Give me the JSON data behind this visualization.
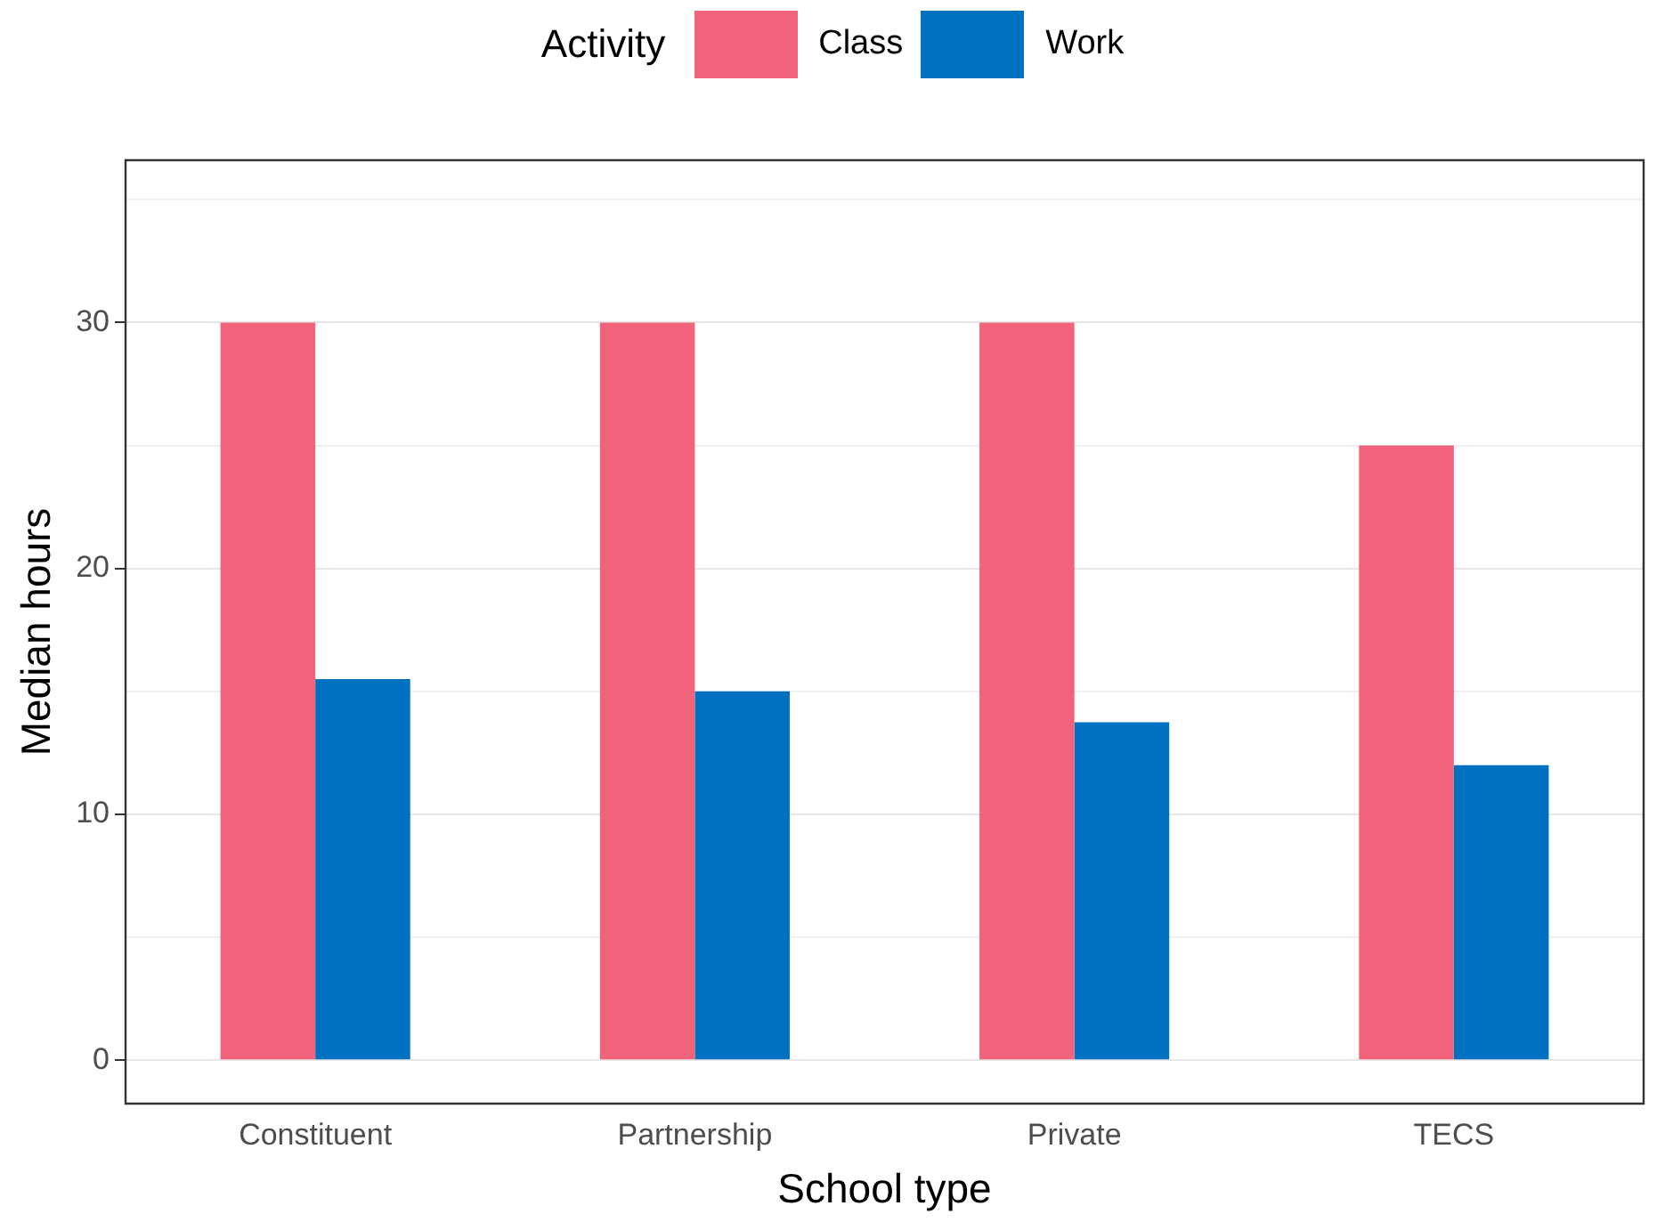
{
  "chart_data": {
    "type": "bar",
    "xlabel": "School type",
    "ylabel": "Median hours",
    "legend_title": "Activity",
    "legend": "top",
    "grid": "y",
    "categories": [
      "Constituent",
      "Partnership",
      "Private",
      "TECS"
    ],
    "series": [
      {
        "name": "Class",
        "color": "#f0637a",
        "values": [
          30,
          30,
          30,
          25
        ]
      },
      {
        "name": "Work",
        "color": "#0070c0",
        "values": [
          15.5,
          15,
          13.75,
          12
        ]
      }
    ],
    "ylim": [
      -1.76,
      36.6
    ],
    "yticks": [
      0,
      {
        "value": 5,
        "label": null
      },
      10,
      {
        "value": 15,
        "label": null
      },
      20,
      {
        "value": 25,
        "label": null
      },
      30,
      {
        "value": 35,
        "label": null
      }
    ]
  }
}
